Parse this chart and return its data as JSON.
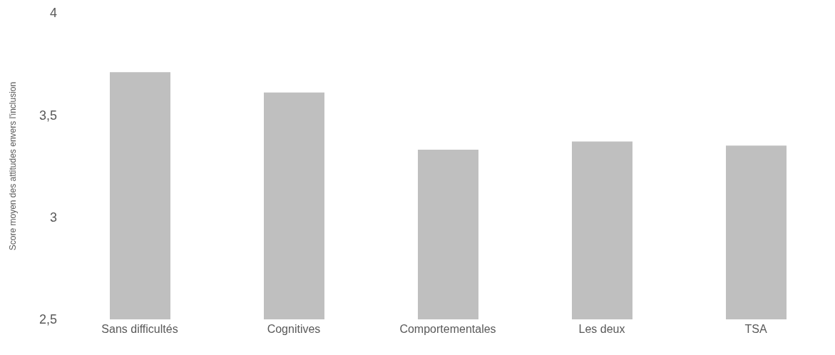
{
  "chart_data": {
    "type": "bar",
    "ylabel": "Score moyen des attitudes envers l'inclusion",
    "categories": [
      "Sans difficultés",
      "Cognitives",
      "Comportementales",
      "Les deux",
      "TSA"
    ],
    "values": [
      3.71,
      3.61,
      3.33,
      3.37,
      3.35
    ],
    "color": "#bfbfbf",
    "ylim": [
      2.5,
      4
    ],
    "yticks": [
      {
        "value": 2.5,
        "label": "2,5"
      },
      3,
      {
        "value": 3.5,
        "label": "3,5"
      },
      4
    ],
    "grid": false,
    "legend": false
  }
}
